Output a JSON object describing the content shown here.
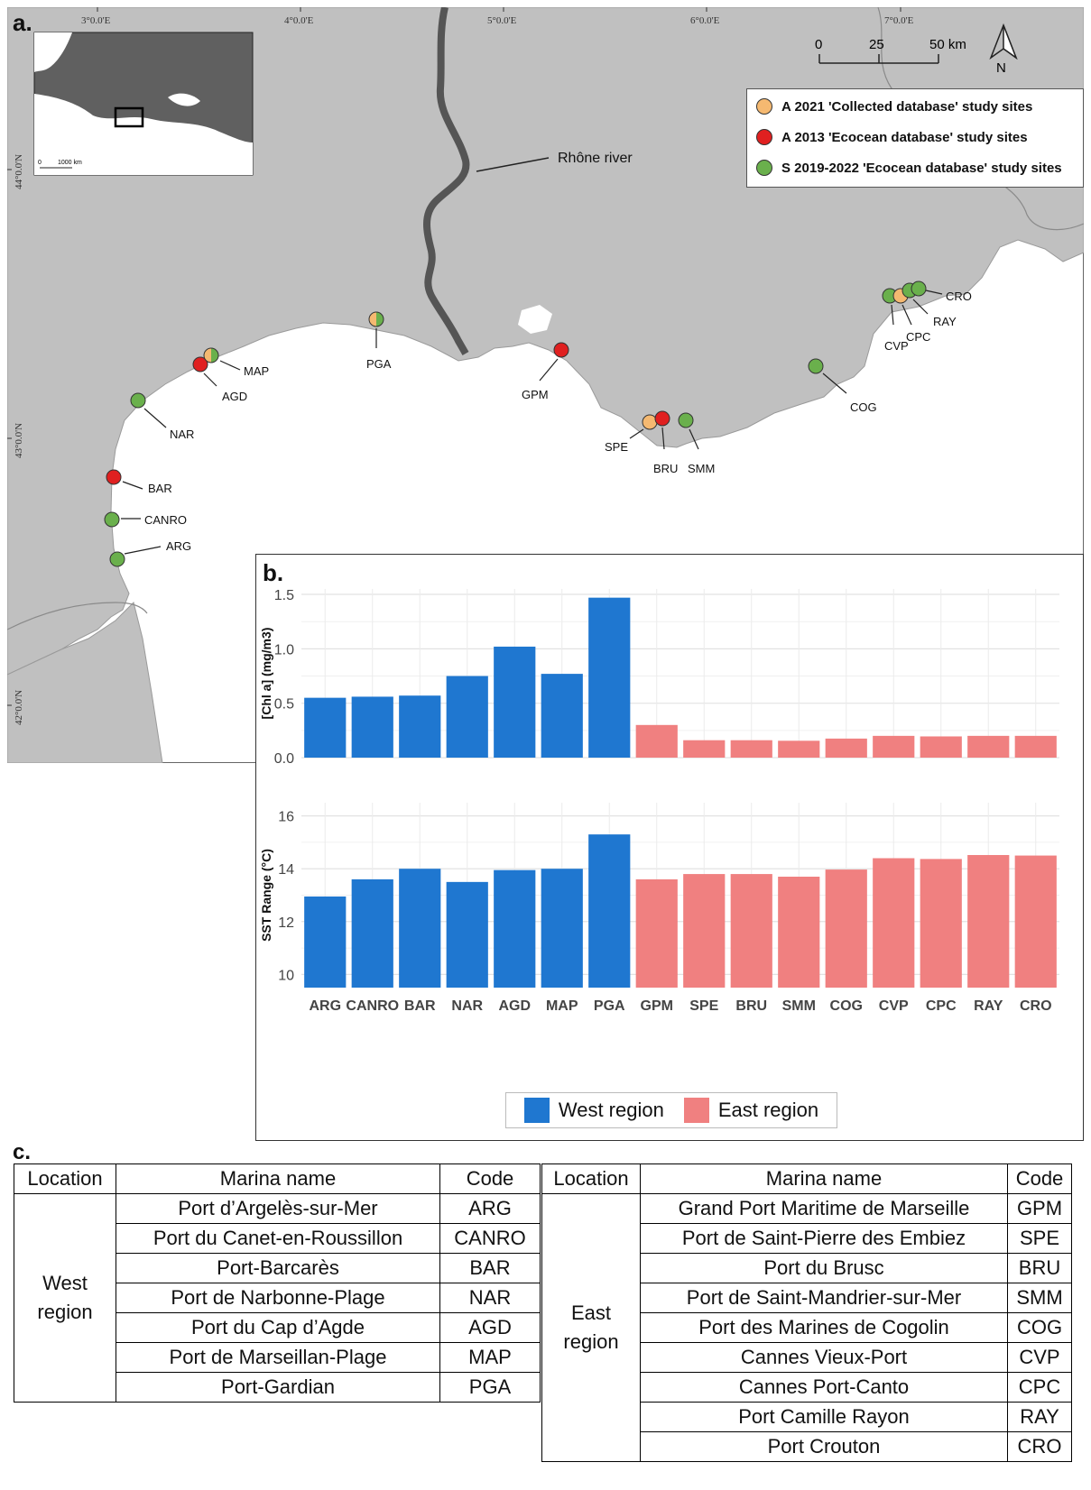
{
  "panels": {
    "a": "a.",
    "b": "b.",
    "c": "c."
  },
  "map": {
    "lon_ticks": [
      "3°0.0'E",
      "4°0.0'E",
      "5°0.0'E",
      "6°0.0'E",
      "7°0.0'E"
    ],
    "lat_ticks": [
      "44°0.0'N",
      "43°0.0'N",
      "42°0.0'N"
    ],
    "scale": {
      "labels": [
        "0",
        "25",
        "50 km"
      ]
    },
    "north": "N",
    "inset_scale": [
      "0",
      "1000 km"
    ],
    "river_label": "Rhône river",
    "legend": [
      {
        "label": "A 2021 'Collected database' study sites",
        "color": "#f5b971"
      },
      {
        "label": "A 2013 'Ecocean database' study sites",
        "color": "#e02020"
      },
      {
        "label": "S 2019-2022 'Ecocean database' study sites",
        "color": "#6ab04c"
      }
    ],
    "colors": {
      "land": "#c0c0c0",
      "sea": "#ffffff",
      "river": "#555555",
      "inset_land": "#606060"
    },
    "sites": [
      {
        "code": "ARG"
      },
      {
        "code": "CANRO"
      },
      {
        "code": "BAR"
      },
      {
        "code": "NAR"
      },
      {
        "code": "AGD"
      },
      {
        "code": "MAP"
      },
      {
        "code": "PGA"
      },
      {
        "code": "GPM"
      },
      {
        "code": "SPE"
      },
      {
        "code": "BRU"
      },
      {
        "code": "SMM"
      },
      {
        "code": "COG"
      },
      {
        "code": "CVP"
      },
      {
        "code": "CPC"
      },
      {
        "code": "RAY"
      },
      {
        "code": "CRO"
      }
    ]
  },
  "chart_data": [
    {
      "type": "bar",
      "categories": [
        "ARG",
        "CANRO",
        "BAR",
        "NAR",
        "AGD",
        "MAP",
        "PGA",
        "GPM",
        "SPE",
        "BRU",
        "SMM",
        "COG",
        "CVP",
        "CPC",
        "RAY",
        "CRO"
      ],
      "values": [
        0.55,
        0.56,
        0.57,
        0.75,
        1.02,
        0.77,
        1.47,
        0.3,
        0.16,
        0.16,
        0.155,
        0.175,
        0.2,
        0.195,
        0.2,
        0.2
      ],
      "region": [
        "West region",
        "West region",
        "West region",
        "West region",
        "West region",
        "West region",
        "West region",
        "East region",
        "East region",
        "East region",
        "East region",
        "East region",
        "East region",
        "East region",
        "East region",
        "East region"
      ],
      "ylabel": "[Chl a] (mg/m3)",
      "ylim": [
        0,
        1.55
      ],
      "yticks": [
        "0.0",
        "0.5",
        "1.0",
        "1.5"
      ],
      "grid": true
    },
    {
      "type": "bar",
      "categories": [
        "ARG",
        "CANRO",
        "BAR",
        "NAR",
        "AGD",
        "MAP",
        "PGA",
        "GPM",
        "SPE",
        "BRU",
        "SMM",
        "COG",
        "CVP",
        "CPC",
        "RAY",
        "CRO"
      ],
      "values": [
        12.95,
        13.6,
        14.0,
        13.5,
        13.95,
        14.0,
        15.3,
        13.6,
        13.8,
        13.8,
        13.7,
        13.97,
        14.4,
        14.37,
        14.52,
        14.5
      ],
      "region": [
        "West region",
        "West region",
        "West region",
        "West region",
        "West region",
        "West region",
        "West region",
        "East region",
        "East region",
        "East region",
        "East region",
        "East region",
        "East region",
        "East region",
        "East region",
        "East region"
      ],
      "ylabel": "SST Range (°C)",
      "ylim": [
        9.5,
        16.5
      ],
      "yticks": [
        "10",
        "12",
        "14",
        "16"
      ],
      "grid": true,
      "legend": [
        {
          "name": "West region",
          "color": "#1f77d0"
        },
        {
          "name": "East region",
          "color": "#f08080"
        }
      ]
    }
  ],
  "table": {
    "headers": [
      "Location",
      "Marina name",
      "Code",
      "Location",
      "Marina name",
      "Code"
    ],
    "west": {
      "location": "West region",
      "rows": [
        [
          "Port d’Argelès-sur-Mer",
          "ARG"
        ],
        [
          "Port du Canet-en-Roussillon",
          "CANRO"
        ],
        [
          "Port-Barcarès",
          "BAR"
        ],
        [
          "Port de Narbonne-Plage",
          "NAR"
        ],
        [
          "Port du Cap d’Agde",
          "AGD"
        ],
        [
          "Port de Marseillan-Plage",
          "MAP"
        ],
        [
          "Port-Gardian",
          "PGA"
        ]
      ]
    },
    "east": {
      "location": "East region",
      "rows": [
        [
          "Grand Port Maritime de Marseille",
          "GPM"
        ],
        [
          "Port de Saint-Pierre des Embiez",
          "SPE"
        ],
        [
          "Port du Brusc",
          "BRU"
        ],
        [
          "Port de Saint-Mandrier-sur-Mer",
          "SMM"
        ],
        [
          "Port des Marines de Cogolin",
          "COG"
        ],
        [
          "Cannes Vieux-Port",
          "CVP"
        ],
        [
          "Cannes Port-Canto",
          "CPC"
        ],
        [
          "Port Camille Rayon",
          "RAY"
        ],
        [
          "Port Crouton",
          "CRO"
        ]
      ]
    }
  }
}
